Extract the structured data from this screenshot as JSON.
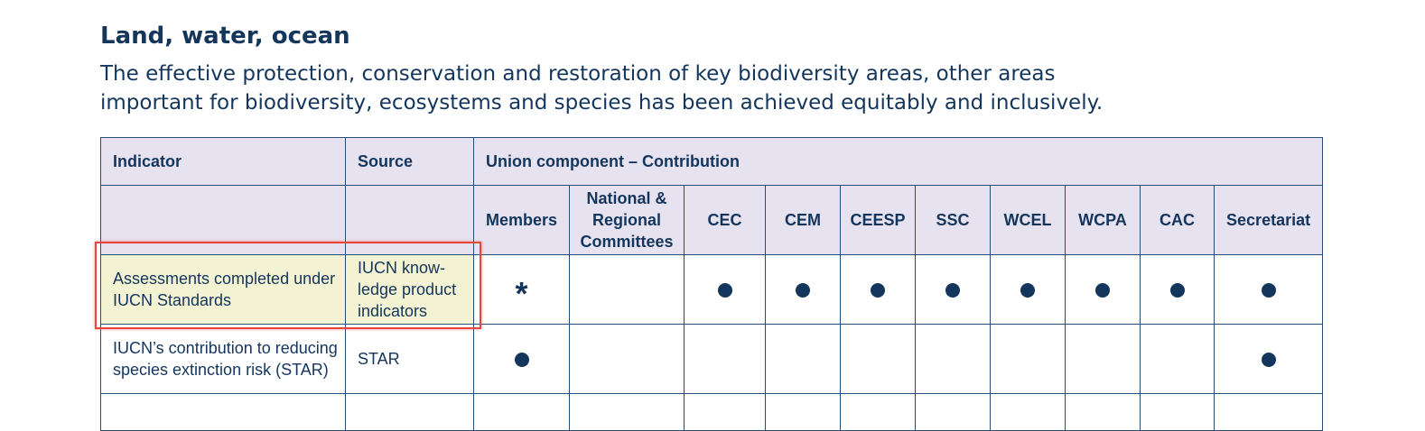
{
  "heading": "Land, water, ocean",
  "intro_lines": [
    "The effective protection, conservation and restoration of key biodiversity areas, other areas",
    "important for biodiversity, ecosystems and species has been achieved equitably and inclusively."
  ],
  "table": {
    "header_row1": {
      "indicator": "Indicator",
      "source": "Source",
      "union": "Union component – Contribution"
    },
    "components": [
      "Members",
      "National & Regional Committees",
      "CEC",
      "CEM",
      "CEESP",
      "SSC",
      "WCEL",
      "WCPA",
      "CAC",
      "Secretariat"
    ],
    "rows": [
      {
        "indicator": "Assessments completed under IUCN Standards",
        "source": "IUCN know-ledge product indicators",
        "marks": [
          "star",
          "",
          "dot",
          "dot",
          "dot",
          "dot",
          "dot",
          "dot",
          "dot",
          "dot"
        ]
      },
      {
        "indicator": "IUCN’s contribution to reducing species extinction risk (STAR)",
        "source": "STAR",
        "marks": [
          "dot",
          "",
          "",
          "",
          "",
          "",
          "",
          "",
          "",
          "dot"
        ]
      }
    ]
  },
  "colors": {
    "text": "#14365c",
    "header_bg": "#e7e2f0",
    "highlight_bg": "#f3f2d2",
    "highlight_border": "#e8453c"
  }
}
